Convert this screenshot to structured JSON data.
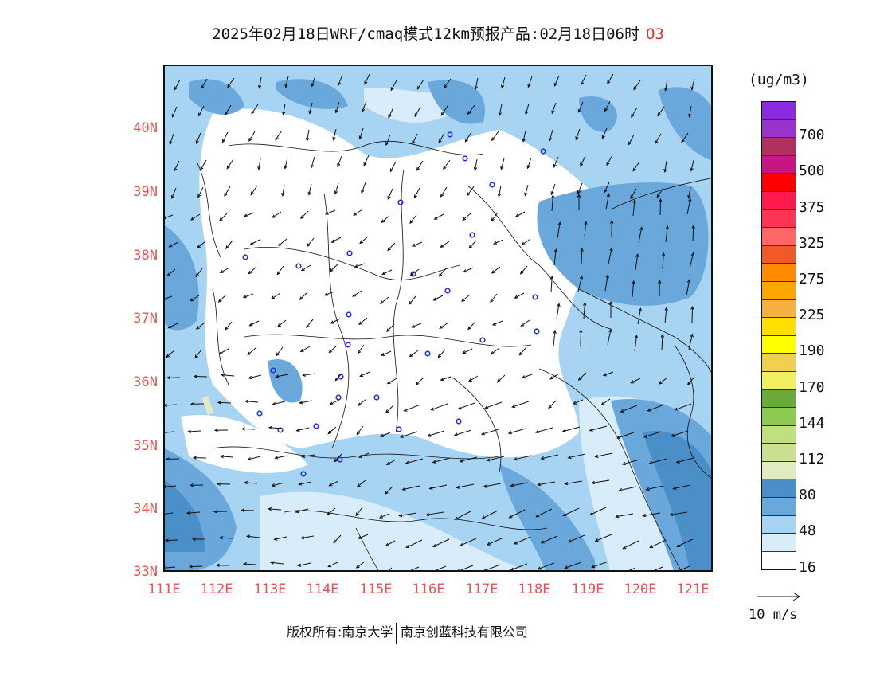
{
  "title": {
    "text": "2025年02月18日WRF/cmaq模式12km预报产品:02月18日06时",
    "species": "O3"
  },
  "map": {
    "lat_labels": [
      "40N",
      "39N",
      "38N",
      "37N",
      "36N",
      "35N",
      "34N",
      "33N"
    ],
    "lon_labels": [
      "111E",
      "112E",
      "113E",
      "114E",
      "115E",
      "116E",
      "117E",
      "118E",
      "119E",
      "120E",
      "121E"
    ],
    "lat_range": [
      33,
      41
    ],
    "lon_range": [
      111,
      121.4
    ]
  },
  "colorbar": {
    "unit": "(ug/m3)",
    "levels": [
      {
        "color": "#8a2be2"
      },
      {
        "color": "#9a33cc",
        "label": "700"
      },
      {
        "color": "#b03060"
      },
      {
        "color": "#c71585",
        "label": "500"
      },
      {
        "color": "#ff0000"
      },
      {
        "color": "#ff1a4a",
        "label": "375"
      },
      {
        "color": "#ff3355"
      },
      {
        "color": "#ff6666",
        "label": "325"
      },
      {
        "color": "#f05a28"
      },
      {
        "color": "#ff8c00",
        "label": "275"
      },
      {
        "color": "#ffa500"
      },
      {
        "color": "#f5b041",
        "label": "225"
      },
      {
        "color": "#ffe000"
      },
      {
        "color": "#ffff00",
        "label": "190"
      },
      {
        "color": "#f0d050"
      },
      {
        "color": "#f0f060",
        "label": "170"
      },
      {
        "color": "#6aaa3a"
      },
      {
        "color": "#8fca50",
        "label": "144"
      },
      {
        "color": "#c0e080"
      },
      {
        "color": "#c8e090",
        "label": "112"
      },
      {
        "color": "#e0ecc0"
      },
      {
        "color": "#4a8fc8",
        "label": "80"
      },
      {
        "color": "#6aa8dc"
      },
      {
        "color": "#a8d4f4",
        "label": "48"
      },
      {
        "color": "#d8ecfa"
      },
      {
        "color": "#ffffff",
        "label": "16"
      }
    ]
  },
  "reference_vector": {
    "label": "10 m/s"
  },
  "footer": {
    "left": "版权所有:南京大学",
    "right": "南京创蓝科技有限公司"
  }
}
